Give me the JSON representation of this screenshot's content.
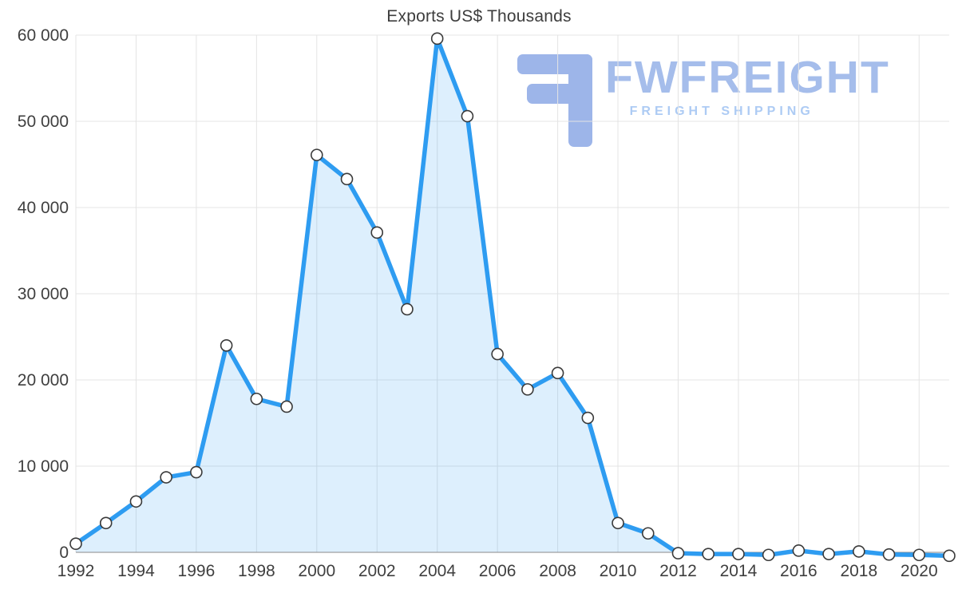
{
  "title": "Exports US$ Thousands",
  "watermark": {
    "brand": "FWFREIGHT",
    "tagline": "FREIGHT SHIPPING",
    "brand_color": "#a5bdeb",
    "tagline_color": "#adcbf4",
    "logo_color": "#9db5e9"
  },
  "chart_data": {
    "type": "area",
    "title": "Exports US$ Thousands",
    "xlabel": "",
    "ylabel": "",
    "x": [
      1992,
      1993,
      1994,
      1995,
      1996,
      1997,
      1998,
      1999,
      2000,
      2001,
      2002,
      2003,
      2004,
      2005,
      2006,
      2007,
      2008,
      2009,
      2010,
      2011,
      2012,
      2013,
      2014,
      2015,
      2016,
      2017,
      2018,
      2019,
      2020,
      2021
    ],
    "values": [
      1000,
      3400,
      5900,
      8700,
      9300,
      24000,
      17800,
      16900,
      46100,
      43300,
      37100,
      28200,
      59600,
      50600,
      23000,
      18900,
      20800,
      15600,
      3400,
      2200,
      -100,
      -200,
      -200,
      -300,
      200,
      -200,
      100,
      -250,
      -300,
      -400
    ],
    "ylim": [
      0,
      60000
    ],
    "y_ticks": [
      0,
      10000,
      20000,
      30000,
      40000,
      50000,
      60000
    ],
    "y_tick_labels": [
      "0",
      "10 000",
      "20 000",
      "30 000",
      "40 000",
      "50 000",
      "60 000"
    ],
    "x_tick_years": [
      1992,
      1994,
      1996,
      1998,
      2000,
      2002,
      2004,
      2006,
      2008,
      2010,
      2012,
      2014,
      2016,
      2018,
      2020
    ],
    "grid": true,
    "legend": "none",
    "colors": {
      "line": "#2e9cf1",
      "area_fill": "#2e9cf1",
      "area_opacity": 0.16,
      "marker_fill": "#ffffff",
      "marker_stroke": "#3a3a3a",
      "gridline": "#e4e4e4",
      "baseline": "#8a8a8a",
      "tick_text": "#3f3f3f",
      "title_text": "#3d3d3d"
    }
  }
}
